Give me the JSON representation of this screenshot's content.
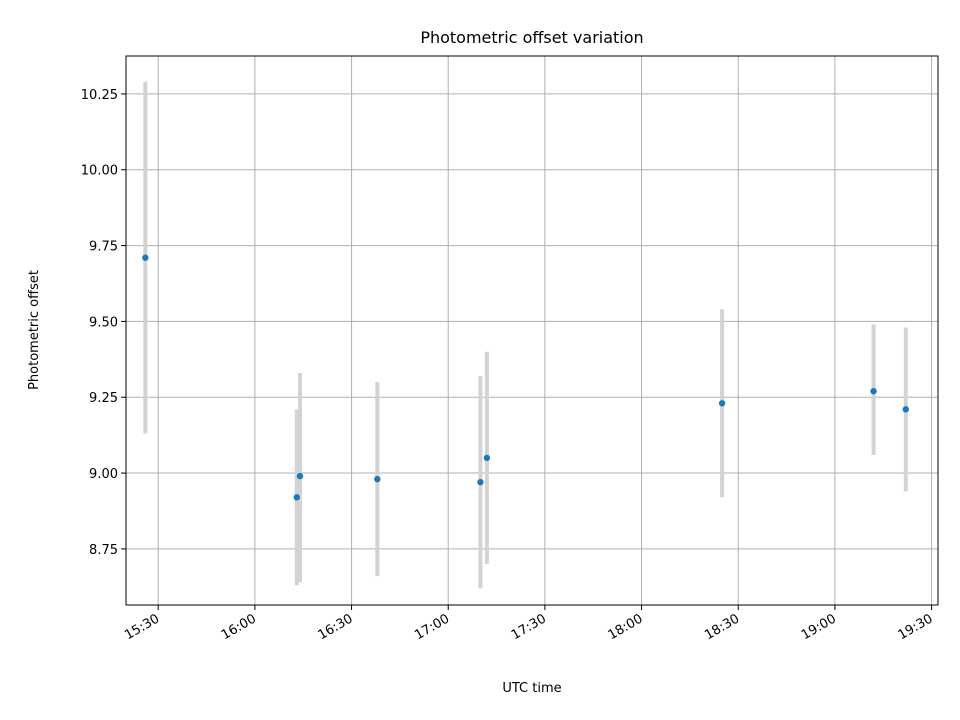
{
  "chart_data": {
    "type": "scatter",
    "title": "Photometric offset variation",
    "xlabel": "UTC time",
    "ylabel": "Photometric offset",
    "grid": true,
    "x_is_time": true,
    "xlim": [
      "15:20",
      "19:32"
    ],
    "ylim": [
      8.565,
      10.375
    ],
    "xticks": [
      "15:30",
      "16:00",
      "16:30",
      "17:00",
      "17:30",
      "18:00",
      "18:30",
      "19:00",
      "19:30"
    ],
    "yticks": [
      8.75,
      9.0,
      9.25,
      9.5,
      9.75,
      10.0,
      10.25
    ],
    "ytick_labels": [
      "8.75",
      "9.00",
      "9.25",
      "9.50",
      "9.75",
      "10.00",
      "10.25"
    ],
    "series": [
      {
        "points": [
          {
            "x": "15:26",
            "y": 9.71,
            "err_low": 9.13,
            "err_high": 10.29
          },
          {
            "x": "16:13",
            "y": 8.92,
            "err_low": 8.63,
            "err_high": 9.21
          },
          {
            "x": "16:14",
            "y": 8.99,
            "err_low": 8.64,
            "err_high": 9.33
          },
          {
            "x": "16:38",
            "y": 8.98,
            "err_low": 8.66,
            "err_high": 9.3
          },
          {
            "x": "17:10",
            "y": 8.97,
            "err_low": 8.62,
            "err_high": 9.32
          },
          {
            "x": "17:12",
            "y": 9.05,
            "err_low": 8.7,
            "err_high": 9.4
          },
          {
            "x": "18:25",
            "y": 9.23,
            "err_low": 8.92,
            "err_high": 9.54
          },
          {
            "x": "19:12",
            "y": 9.27,
            "err_low": 9.06,
            "err_high": 9.49
          },
          {
            "x": "19:22",
            "y": 9.21,
            "err_low": 8.94,
            "err_high": 9.48
          }
        ]
      }
    ],
    "colors": {
      "marker": "#1f77b4",
      "errorbar": "#d3d3d3",
      "grid": "#b0b0b0"
    }
  }
}
